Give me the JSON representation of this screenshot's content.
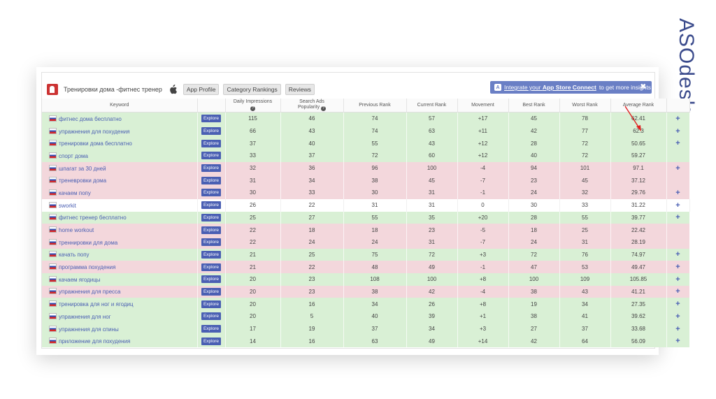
{
  "brand": {
    "logo_text": "ASOdesk"
  },
  "app": {
    "name": "Тренировки дома -фитнес тренер",
    "platform_icon": "apple-icon",
    "tabs": [
      "App Profile",
      "Category Rankings",
      "Reviews"
    ]
  },
  "banner": {
    "icon": "app-store-icon",
    "text_prefix": "Integrate your",
    "text_bold": "App Store Connect",
    "text_suffix": "to get more insights",
    "close": "✖"
  },
  "table": {
    "headers": {
      "keyword": "Keyword",
      "daily_impressions": "Daily Impressions",
      "popularity_line1": "Search Ads",
      "popularity_line2": "Popularity",
      "previous_rank": "Previous Rank",
      "current_rank": "Current Rank",
      "movement": "Movement",
      "best_rank": "Best Rank",
      "worst_rank": "Worst Rank",
      "average_rank": "Average Rank"
    },
    "explore_label": "Explore",
    "rows": [
      {
        "keyword": "фитнес дома бесплатно",
        "impr": "115",
        "pop": "46",
        "prev": "74",
        "cur": "57",
        "move": "+17",
        "best": "45",
        "worst": "78",
        "avg": "62.41",
        "status": "green",
        "plus": true
      },
      {
        "keyword": "упражнения для похудения",
        "impr": "66",
        "pop": "43",
        "prev": "74",
        "cur": "63",
        "move": "+11",
        "best": "42",
        "worst": "77",
        "avg": "62.3",
        "status": "green",
        "plus": true
      },
      {
        "keyword": "тренировки дома бесплатно",
        "impr": "37",
        "pop": "40",
        "prev": "55",
        "cur": "43",
        "move": "+12",
        "best": "28",
        "worst": "72",
        "avg": "50.65",
        "status": "green",
        "plus": true
      },
      {
        "keyword": "спорт дома",
        "impr": "33",
        "pop": "37",
        "prev": "72",
        "cur": "60",
        "move": "+12",
        "best": "40",
        "worst": "72",
        "avg": "59.27",
        "status": "green",
        "plus": false
      },
      {
        "keyword": "шпагат за 30 дней",
        "impr": "32",
        "pop": "36",
        "prev": "96",
        "cur": "100",
        "move": "-4",
        "best": "94",
        "worst": "101",
        "avg": "97.1",
        "status": "red",
        "plus": true
      },
      {
        "keyword": "треневровки дома",
        "impr": "31",
        "pop": "34",
        "prev": "38",
        "cur": "45",
        "move": "-7",
        "best": "23",
        "worst": "45",
        "avg": "37.12",
        "status": "red",
        "plus": false
      },
      {
        "keyword": "качаем попу",
        "impr": "30",
        "pop": "33",
        "prev": "30",
        "cur": "31",
        "move": "-1",
        "best": "24",
        "worst": "32",
        "avg": "29.76",
        "status": "red",
        "plus": true
      },
      {
        "keyword": "sworkit",
        "impr": "26",
        "pop": "22",
        "prev": "31",
        "cur": "31",
        "move": "0",
        "best": "30",
        "worst": "33",
        "avg": "31.22",
        "status": "white",
        "plus": true
      },
      {
        "keyword": "фитнес тренер бесплатно",
        "impr": "25",
        "pop": "27",
        "prev": "55",
        "cur": "35",
        "move": "+20",
        "best": "28",
        "worst": "55",
        "avg": "39.77",
        "status": "green",
        "plus": true
      },
      {
        "keyword": "home workout",
        "impr": "22",
        "pop": "18",
        "prev": "18",
        "cur": "23",
        "move": "-5",
        "best": "18",
        "worst": "25",
        "avg": "22.42",
        "status": "red",
        "plus": false
      },
      {
        "keyword": "треннировки для дома",
        "impr": "22",
        "pop": "24",
        "prev": "24",
        "cur": "31",
        "move": "-7",
        "best": "24",
        "worst": "31",
        "avg": "28.19",
        "status": "red",
        "plus": false
      },
      {
        "keyword": "качать попу",
        "impr": "21",
        "pop": "25",
        "prev": "75",
        "cur": "72",
        "move": "+3",
        "best": "72",
        "worst": "76",
        "avg": "74.97",
        "status": "green",
        "plus": true
      },
      {
        "keyword": "программа похудения",
        "impr": "21",
        "pop": "22",
        "prev": "48",
        "cur": "49",
        "move": "-1",
        "best": "47",
        "worst": "53",
        "avg": "49.47",
        "status": "red",
        "plus": true
      },
      {
        "keyword": "качаем ягодицы",
        "impr": "20",
        "pop": "23",
        "prev": "108",
        "cur": "100",
        "move": "+8",
        "best": "100",
        "worst": "109",
        "avg": "105.85",
        "status": "green",
        "plus": true
      },
      {
        "keyword": "упражнения для пресса",
        "impr": "20",
        "pop": "23",
        "prev": "38",
        "cur": "42",
        "move": "-4",
        "best": "38",
        "worst": "43",
        "avg": "41.21",
        "status": "red",
        "plus": true
      },
      {
        "keyword": "тренировка для ног и ягодиц",
        "impr": "20",
        "pop": "16",
        "prev": "34",
        "cur": "26",
        "move": "+8",
        "best": "19",
        "worst": "34",
        "avg": "27.35",
        "status": "green",
        "plus": true
      },
      {
        "keyword": "упражнения для ног",
        "impr": "20",
        "pop": "5",
        "prev": "40",
        "cur": "39",
        "move": "+1",
        "best": "38",
        "worst": "41",
        "avg": "39.62",
        "status": "green",
        "plus": true
      },
      {
        "keyword": "упражнения для спины",
        "impr": "17",
        "pop": "19",
        "prev": "37",
        "cur": "34",
        "move": "+3",
        "best": "27",
        "worst": "37",
        "avg": "33.68",
        "status": "green",
        "plus": true
      },
      {
        "keyword": "приложение для похудения",
        "impr": "14",
        "pop": "16",
        "prev": "63",
        "cur": "49",
        "move": "+14",
        "best": "42",
        "worst": "64",
        "avg": "56.09",
        "status": "green",
        "plus": true
      }
    ]
  },
  "colors": {
    "accent": "#4a5fb3",
    "positive": "#39a84a",
    "negative": "#e2524f",
    "row_green": "#d9f0d5",
    "row_red": "#f3d7dc",
    "annotation_arrow": "#e02020"
  }
}
